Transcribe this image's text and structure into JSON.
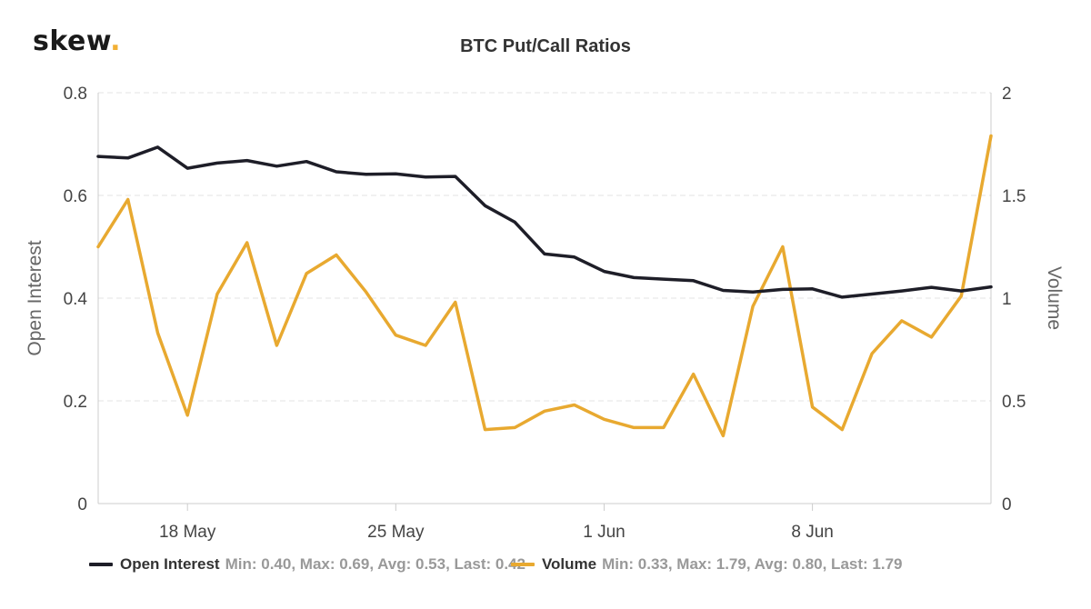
{
  "logo": {
    "text": "skew",
    "dot": "."
  },
  "chart_data": {
    "type": "line",
    "title": "BTC Put/Call Ratios",
    "x_axis": {
      "range": [
        "2020-05-15",
        "2020-06-14"
      ],
      "ticks": [
        {
          "date": "2020-05-18",
          "label": "18 May"
        },
        {
          "date": "2020-05-25",
          "label": "25 May"
        },
        {
          "date": "2020-06-01",
          "label": "1 Jun"
        },
        {
          "date": "2020-06-08",
          "label": "8 Jun"
        }
      ]
    },
    "y_left": {
      "label": "Open Interest",
      "range": [
        0,
        0.8
      ],
      "ticks": [
        0,
        0.2,
        0.4,
        0.6,
        0.8
      ],
      "tick_labels": [
        "0",
        "0.2",
        "0.4",
        "0.6",
        "0.8"
      ]
    },
    "y_right": {
      "label": "Volume",
      "range": [
        0,
        2
      ],
      "ticks": [
        0,
        0.5,
        1,
        1.5,
        2
      ],
      "tick_labels": [
        "0",
        "0.5",
        "1",
        "1.5",
        "2"
      ]
    },
    "grid": "horizontal dashed",
    "legend_position": "bottom",
    "x": [
      "2020-05-15",
      "2020-05-16",
      "2020-05-17",
      "2020-05-18",
      "2020-05-19",
      "2020-05-20",
      "2020-05-21",
      "2020-05-22",
      "2020-05-23",
      "2020-05-24",
      "2020-05-25",
      "2020-05-26",
      "2020-05-27",
      "2020-05-28",
      "2020-05-29",
      "2020-05-30",
      "2020-05-31",
      "2020-06-01",
      "2020-06-02",
      "2020-06-03",
      "2020-06-04",
      "2020-06-05",
      "2020-06-06",
      "2020-06-07",
      "2020-06-08",
      "2020-06-09",
      "2020-06-10",
      "2020-06-11",
      "2020-06-12",
      "2020-06-13",
      "2020-06-14"
    ],
    "series": [
      {
        "name": "Open Interest",
        "axis": "left",
        "color": "#1e1e28",
        "values": [
          0.676,
          0.673,
          0.694,
          0.653,
          0.663,
          0.668,
          0.657,
          0.666,
          0.646,
          0.641,
          0.642,
          0.636,
          0.637,
          0.58,
          0.548,
          0.486,
          0.48,
          0.452,
          0.44,
          0.437,
          0.434,
          0.415,
          0.412,
          0.417,
          0.418,
          0.402,
          0.408,
          0.414,
          0.421,
          0.414,
          0.422
        ],
        "legend_stats": "Min: 0.40, Max: 0.69, Avg: 0.53, Last: 0.42"
      },
      {
        "name": "Volume",
        "axis": "right",
        "color": "#e8a930",
        "values": [
          1.25,
          1.48,
          0.83,
          0.43,
          1.02,
          1.27,
          0.77,
          1.12,
          1.21,
          1.03,
          0.82,
          0.77,
          0.98,
          0.36,
          0.37,
          0.45,
          0.48,
          0.41,
          0.37,
          0.37,
          0.63,
          0.33,
          0.96,
          1.25,
          0.47,
          0.36,
          0.73,
          0.89,
          0.81,
          1.01,
          1.79
        ],
        "legend_stats": "Min: 0.33, Max: 1.79, Avg: 0.80, Last: 1.79"
      }
    ]
  }
}
